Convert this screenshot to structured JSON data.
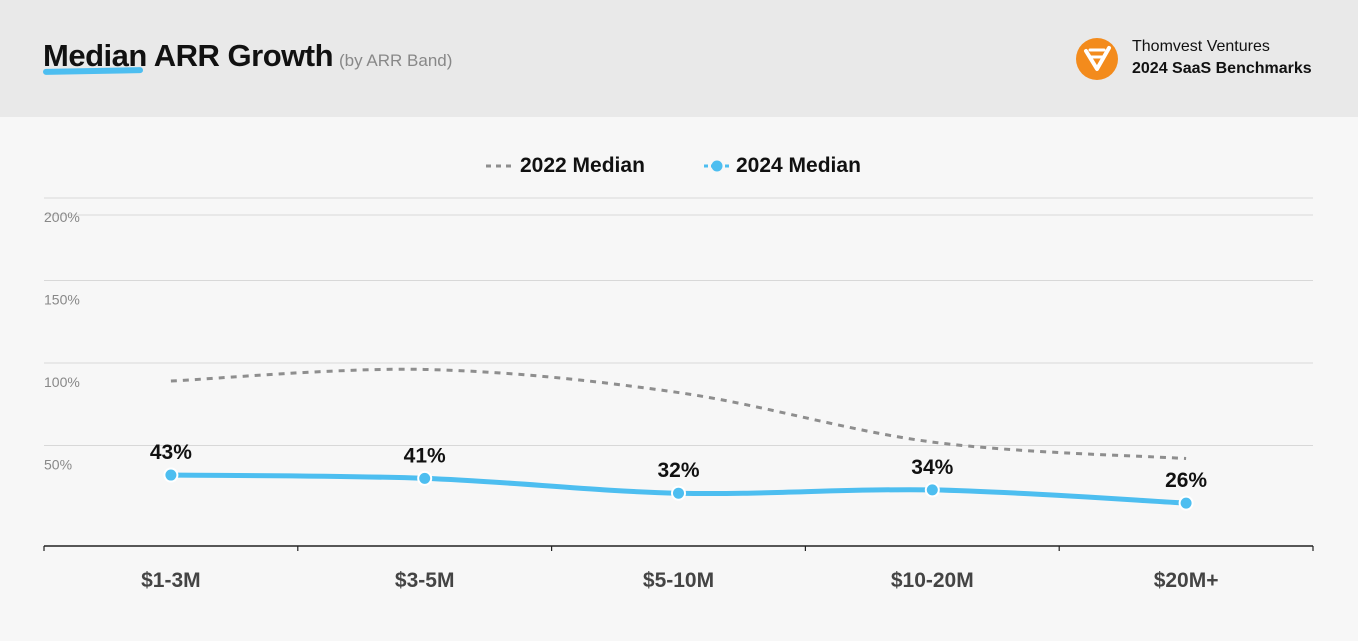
{
  "header": {
    "title": "Median ARR Growth",
    "subtitle": "(by ARR Band)",
    "brand_name": "Thomvest Ventures",
    "brand_sub": "2024 SaaS Benchmarks"
  },
  "colors": {
    "accent": "#4dbef0",
    "series_2022": "#8e8e8e",
    "brand_logo": "#f38b1c"
  },
  "chart_data": {
    "type": "line",
    "categories": [
      "$1-3M",
      "$3-5M",
      "$5-10M",
      "$10-20M",
      "$20M+"
    ],
    "series": [
      {
        "name": "2022 Median",
        "values": [
          100,
          107,
          93,
          63,
          53
        ],
        "style": "dashed",
        "color": "#8e8e8e"
      },
      {
        "name": "2024 Median",
        "values": [
          43,
          41,
          32,
          34,
          26
        ],
        "labels": [
          "43%",
          "41%",
          "32%",
          "34%",
          "26%"
        ],
        "style": "solid-markers",
        "color": "#4dbef0"
      }
    ],
    "y_ticks": [
      {
        "value": 50,
        "label": "50%"
      },
      {
        "value": 100,
        "label": "100%"
      },
      {
        "value": 150,
        "label": "150%"
      },
      {
        "value": 200,
        "label": "200%"
      }
    ],
    "ylim": [
      0,
      200
    ],
    "grid": true,
    "legend_position": "top-center"
  }
}
